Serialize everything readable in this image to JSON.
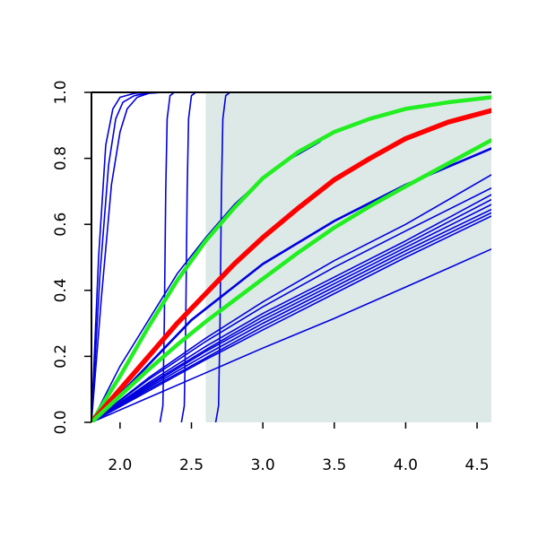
{
  "chart_data": {
    "type": "line",
    "title": "",
    "xlabel": "",
    "ylabel": "",
    "xlim": [
      1.8,
      4.6
    ],
    "ylim": [
      0.0,
      1.0
    ],
    "grid": false,
    "legend": "none",
    "x_ticks": [
      "2.0",
      "2.5",
      "3.0",
      "3.5",
      "4.0",
      "4.5"
    ],
    "x_tick_values": [
      2.0,
      2.5,
      3.0,
      3.5,
      4.0,
      4.5
    ],
    "y_ticks": [
      "0.0",
      "0.2",
      "0.4",
      "0.6",
      "0.8",
      "1.0"
    ],
    "y_tick_values": [
      0.0,
      0.2,
      0.4,
      0.6,
      0.8,
      1.0
    ],
    "shaded_region": {
      "x_start": 2.6,
      "x_end": 4.6,
      "y_start": 0.0,
      "y_end": 1.0,
      "color": "#dde9e7"
    },
    "colors": {
      "blue": "#0000dd",
      "red": "#ff0000",
      "green": "#22ee22",
      "axis": "#000000"
    },
    "series": [
      {
        "color": "blue",
        "width": 1.6,
        "x": [
          1.8,
          1.85,
          1.9,
          1.95,
          2.0,
          2.1,
          2.2,
          2.3,
          4.6
        ],
        "y": [
          0.0,
          0.5,
          0.84,
          0.95,
          0.985,
          0.997,
          1.0,
          1.0,
          1.0
        ]
      },
      {
        "color": "blue",
        "width": 1.6,
        "x": [
          1.8,
          1.86,
          1.92,
          1.97,
          2.02,
          2.1,
          2.2,
          2.3,
          4.6
        ],
        "y": [
          0.0,
          0.45,
          0.78,
          0.92,
          0.97,
          0.99,
          0.998,
          1.0,
          1.0
        ]
      },
      {
        "color": "blue",
        "width": 1.6,
        "x": [
          1.8,
          1.87,
          1.94,
          2.0,
          2.05,
          2.12,
          2.2,
          2.3,
          4.6
        ],
        "y": [
          0.0,
          0.38,
          0.72,
          0.88,
          0.95,
          0.985,
          0.997,
          1.0,
          1.0
        ]
      },
      {
        "color": "blue",
        "width": 1.6,
        "x": [
          2.28,
          2.3,
          2.31,
          2.32,
          2.33,
          2.35,
          2.38,
          4.6
        ],
        "y": [
          0.0,
          0.05,
          0.3,
          0.7,
          0.92,
          0.99,
          1.0,
          1.0
        ]
      },
      {
        "color": "blue",
        "width": 1.6,
        "x": [
          2.43,
          2.45,
          2.46,
          2.47,
          2.48,
          2.5,
          2.53,
          4.6
        ],
        "y": [
          0.0,
          0.05,
          0.3,
          0.7,
          0.92,
          0.99,
          1.0,
          1.0
        ]
      },
      {
        "color": "blue",
        "width": 1.6,
        "x": [
          2.67,
          2.69,
          2.7,
          2.71,
          2.72,
          2.74,
          2.77,
          4.6
        ],
        "y": [
          0.0,
          0.05,
          0.3,
          0.7,
          0.92,
          0.99,
          1.0,
          1.0
        ]
      },
      {
        "color": "blue",
        "width": 1.6,
        "x": [
          1.8,
          2.0,
          2.2,
          2.4,
          2.6,
          2.8,
          3.0,
          3.2,
          3.4
        ],
        "y": [
          0.0,
          0.17,
          0.31,
          0.45,
          0.56,
          0.66,
          0.74,
          0.8,
          0.85
        ]
      },
      {
        "color": "blue",
        "width": 2.6,
        "x": [
          1.8,
          2.0,
          2.5,
          3.0,
          3.5,
          4.0,
          4.6
        ],
        "y": [
          0.0,
          0.085,
          0.31,
          0.48,
          0.61,
          0.72,
          0.83
        ]
      },
      {
        "color": "blue",
        "width": 1.6,
        "x": [
          1.8,
          2.2,
          2.6,
          3.0,
          3.5,
          4.0,
          4.6
        ],
        "y": [
          0.0,
          0.13,
          0.245,
          0.35,
          0.47,
          0.58,
          0.71
        ]
      },
      {
        "color": "blue",
        "width": 1.6,
        "x": [
          1.8,
          2.2,
          2.6,
          3.0,
          3.5,
          4.0,
          4.6
        ],
        "y": [
          0.0,
          0.135,
          0.255,
          0.365,
          0.49,
          0.6,
          0.75
        ]
      },
      {
        "color": "blue",
        "width": 1.6,
        "x": [
          1.8,
          2.2,
          2.6,
          3.0,
          3.5,
          4.0,
          4.6
        ],
        "y": [
          0.0,
          0.12,
          0.23,
          0.33,
          0.44,
          0.55,
          0.69
        ]
      },
      {
        "color": "blue",
        "width": 1.6,
        "x": [
          1.8,
          2.2,
          2.6,
          3.0,
          3.5,
          4.0,
          4.6
        ],
        "y": [
          0.0,
          0.115,
          0.22,
          0.32,
          0.43,
          0.54,
          0.675
        ]
      },
      {
        "color": "blue",
        "width": 1.6,
        "x": [
          1.8,
          2.2,
          2.6,
          3.0,
          3.5,
          4.0,
          4.6
        ],
        "y": [
          0.0,
          0.11,
          0.215,
          0.31,
          0.42,
          0.53,
          0.66
        ]
      },
      {
        "color": "blue",
        "width": 1.6,
        "x": [
          1.8,
          2.2,
          2.6,
          3.0,
          3.5,
          4.0,
          4.6
        ],
        "y": [
          0.0,
          0.105,
          0.205,
          0.3,
          0.41,
          0.52,
          0.645
        ]
      },
      {
        "color": "blue",
        "width": 1.6,
        "x": [
          1.8,
          2.2,
          2.6,
          3.0,
          3.5,
          4.0,
          4.6
        ],
        "y": [
          0.0,
          0.1,
          0.195,
          0.29,
          0.4,
          0.51,
          0.635
        ]
      },
      {
        "color": "blue",
        "width": 1.6,
        "x": [
          1.8,
          2.2,
          2.6,
          3.0,
          3.5,
          4.0,
          4.6
        ],
        "y": [
          0.0,
          0.095,
          0.19,
          0.28,
          0.39,
          0.5,
          0.625
        ]
      },
      {
        "color": "blue",
        "width": 1.6,
        "x": [
          1.8,
          2.2,
          2.6,
          3.0,
          3.5,
          4.0,
          4.6
        ],
        "y": [
          0.0,
          0.075,
          0.15,
          0.225,
          0.315,
          0.41,
          0.525
        ]
      },
      {
        "color": "green",
        "width": 4.5,
        "x": [
          1.8,
          2.0,
          2.2,
          2.4,
          2.6,
          2.8,
          3.0,
          3.25,
          3.5,
          3.75,
          4.0,
          4.3,
          4.6
        ],
        "y": [
          0.0,
          0.14,
          0.29,
          0.43,
          0.55,
          0.65,
          0.74,
          0.82,
          0.88,
          0.92,
          0.95,
          0.97,
          0.985
        ]
      },
      {
        "color": "red",
        "width": 5.5,
        "x": [
          1.8,
          2.0,
          2.2,
          2.4,
          2.6,
          2.8,
          3.0,
          3.25,
          3.5,
          3.75,
          4.0,
          4.3,
          4.6
        ],
        "y": [
          0.0,
          0.1,
          0.2,
          0.3,
          0.39,
          0.48,
          0.56,
          0.65,
          0.735,
          0.8,
          0.86,
          0.91,
          0.945
        ]
      },
      {
        "color": "green",
        "width": 4.5,
        "x": [
          1.8,
          2.0,
          2.2,
          2.4,
          2.6,
          2.8,
          3.0,
          3.25,
          3.5,
          3.75,
          4.0,
          4.3,
          4.6
        ],
        "y": [
          0.0,
          0.08,
          0.16,
          0.235,
          0.305,
          0.37,
          0.435,
          0.515,
          0.59,
          0.655,
          0.715,
          0.785,
          0.855
        ]
      }
    ]
  }
}
